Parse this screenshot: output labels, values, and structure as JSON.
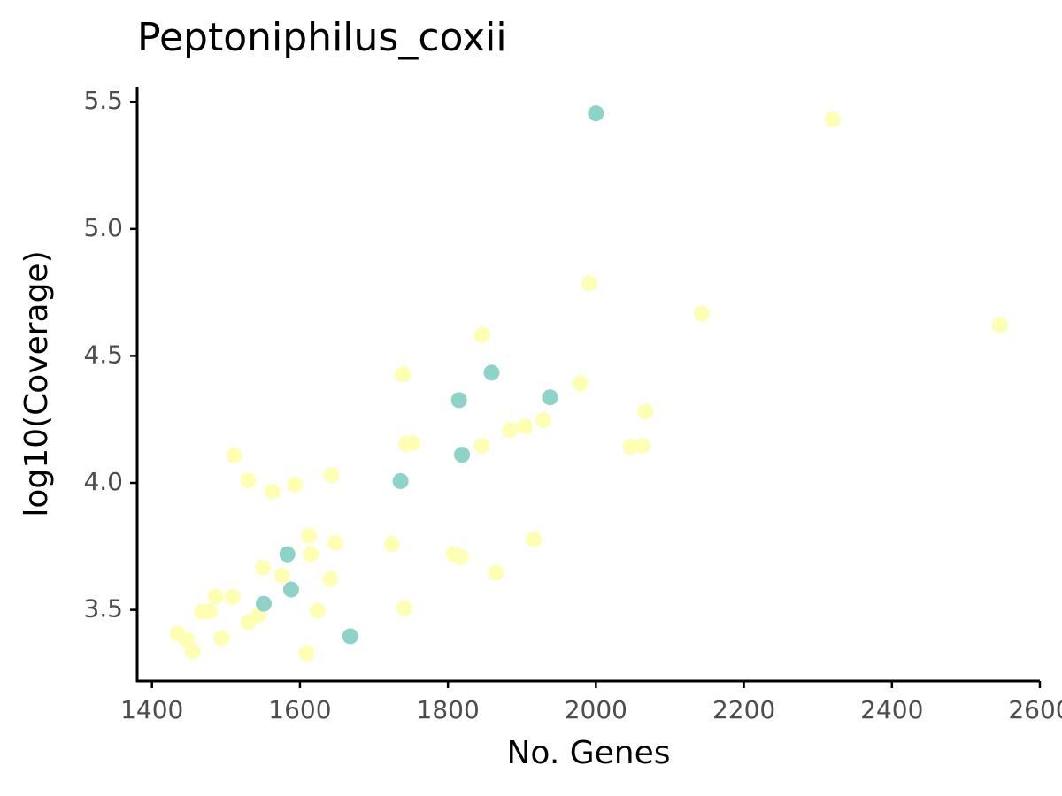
{
  "chart_data": {
    "type": "scatter",
    "title": "Peptoniphilus_coxii",
    "x_label": "No. Genes",
    "y_label": "log10(Coverage)",
    "xlim": [
      1380,
      2600
    ],
    "ylim": [
      3.22,
      5.56
    ],
    "xticks": [
      1400,
      1600,
      1800,
      2000,
      2200,
      2400,
      {
        "value": 2600,
        "label": "2600"
      }
    ],
    "yticks": [
      {
        "value": 3.5,
        "label": "3.5"
      },
      {
        "value": 4.0,
        "label": "4.0"
      },
      {
        "value": 4.5,
        "label": "4.5"
      },
      {
        "value": 5.0,
        "label": "5.0"
      },
      {
        "value": 5.5,
        "label": "5.5"
      }
    ],
    "series": [
      {
        "color": "#ffffb3",
        "x": [
          2320,
          1991,
          2143,
          2546,
          1846,
          1739,
          1979,
          2067,
          1929,
          1904,
          1884,
          1846,
          2047,
          2063,
          1743,
          1752,
          1511,
          1530,
          1563,
          1593,
          1643,
          1612,
          1648,
          1724,
          1916,
          1808,
          1817,
          1615,
          1550,
          1576,
          1641,
          1865,
          1486,
          1509,
          1468,
          1478,
          1624,
          1741,
          1544,
          1530,
          1494,
          1435,
          1447,
          1455,
          1609
        ],
        "values": [
          5.431,
          4.785,
          4.667,
          4.622,
          4.583,
          4.427,
          4.392,
          4.281,
          4.247,
          4.222,
          4.208,
          4.146,
          4.142,
          4.146,
          4.153,
          4.156,
          4.108,
          4.01,
          3.965,
          3.993,
          4.031,
          3.792,
          3.764,
          3.76,
          3.778,
          3.719,
          3.708,
          3.719,
          3.667,
          3.635,
          3.622,
          3.646,
          3.552,
          3.552,
          3.493,
          3.493,
          3.497,
          3.507,
          3.479,
          3.451,
          3.389,
          3.406,
          3.382,
          3.337,
          3.33
        ]
      },
      {
        "color": "#8dd3c7",
        "x": [
          2000,
          1859,
          1938,
          1815,
          1819,
          1736,
          1583,
          1588,
          1551,
          1668
        ],
        "values": [
          5.455,
          4.434,
          4.337,
          4.326,
          4.111,
          4.007,
          3.719,
          3.58,
          3.524,
          3.396
        ]
      }
    ]
  }
}
